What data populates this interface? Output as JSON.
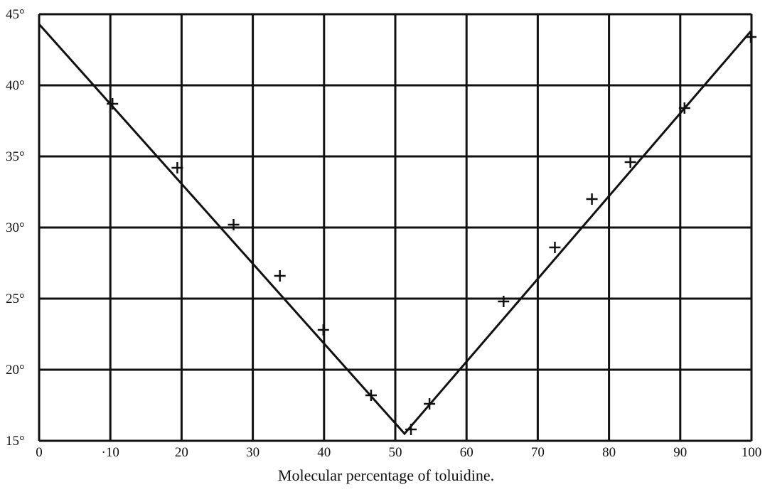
{
  "chart_data": {
    "type": "line",
    "title": "",
    "xlabel": "Molecular percentage of toluidine.",
    "ylabel": "",
    "xlim": [
      0,
      100
    ],
    "ylim": [
      15,
      45
    ],
    "grid": true,
    "x_tick_labels": [
      "0",
      "·10",
      "20",
      "30",
      "40",
      "50",
      "60",
      "70",
      "80",
      "90",
      "100"
    ],
    "y_tick_labels": [
      "15°",
      "20°",
      "25°",
      "30°",
      "35°",
      "40°",
      "45°"
    ],
    "series": [
      {
        "marker": "+",
        "points": [
          [
            10.3,
            38.7
          ],
          [
            19.4,
            34.2
          ],
          [
            27.3,
            30.2
          ],
          [
            33.8,
            26.6
          ],
          [
            39.9,
            22.8
          ],
          [
            46.6,
            18.2
          ],
          [
            52.2,
            15.8
          ],
          [
            54.8,
            17.6
          ],
          [
            65.2,
            24.8
          ],
          [
            72.4,
            28.6
          ],
          [
            77.6,
            32.0
          ],
          [
            83.0,
            34.6
          ],
          [
            90.6,
            38.4
          ],
          [
            99.9,
            43.4
          ]
        ]
      },
      {
        "marker": "line",
        "points": [
          [
            0,
            44.3
          ],
          [
            51.3,
            15.5
          ],
          [
            99.9,
            43.8
          ]
        ]
      }
    ],
    "colors": {
      "ink": "#111111",
      "background": "#ffffff"
    }
  }
}
